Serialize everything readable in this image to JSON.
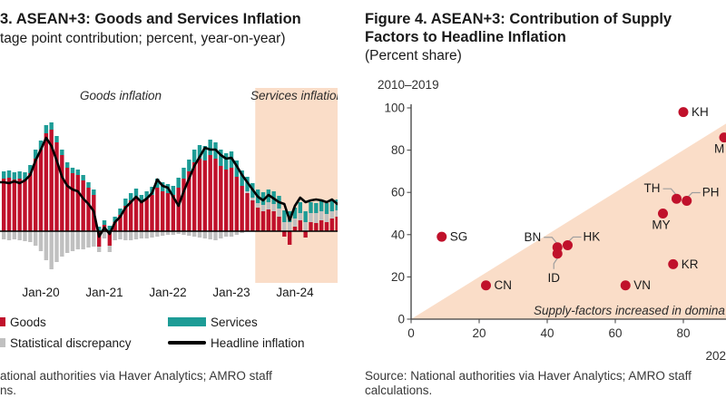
{
  "figure": {
    "left": {
      "title": "3. ASEAN+3: Goods and Services Inflation",
      "subtitle": "tage point contribution; percent, year-on-year)",
      "region_label_goods": "Goods inflation",
      "region_label_services": "Services inflation",
      "source": [
        "ational authorities via Haver Analytics; AMRO staff",
        "ns."
      ],
      "legend": [
        {
          "label": "Goods",
          "color": "#C0112B",
          "swatch": "square-cut"
        },
        {
          "label": "Services",
          "color": "#1D9C96",
          "swatch": "bar"
        },
        {
          "label": "Statistical discrepancy",
          "color": "#C0C0C0",
          "swatch": "square-cut"
        },
        {
          "label": "Headline inflation",
          "color": "#000000",
          "swatch": "line"
        }
      ]
    },
    "right": {
      "title_line1": "Figure 4. ASEAN+3: Contribution of Supply",
      "title_line2": "Factors to Headline Inflation",
      "subtitle": "(Percent share)",
      "source": [
        "Source: National authorities via Haver Analytics; AMRO staff",
        "calculations."
      ]
    }
  },
  "chart_data": [
    {
      "type": "bar",
      "title": "3. ASEAN+3: Goods and Services Inflation",
      "ylabel": "percentage point contribution; percent, year-on-year",
      "grid": false,
      "x_tick_labels": [
        "Jan-20",
        "Jan-21",
        "Jan-22",
        "Jan-23",
        "Jan-24"
      ],
      "x_tick_indices": [
        7,
        19,
        31,
        43,
        55
      ],
      "months": [
        "Jun-19",
        "Jul-19",
        "Aug-19",
        "Sep-19",
        "Oct-19",
        "Nov-19",
        "Dec-19",
        "Jan-20",
        "Feb-20",
        "Mar-20",
        "Apr-20",
        "May-20",
        "Jun-20",
        "Jul-20",
        "Aug-20",
        "Sep-20",
        "Oct-20",
        "Nov-20",
        "Dec-20",
        "Jan-21",
        "Feb-21",
        "Mar-21",
        "Apr-21",
        "May-21",
        "Jun-21",
        "Jul-21",
        "Aug-21",
        "Sep-21",
        "Oct-21",
        "Nov-21",
        "Dec-21",
        "Jan-22",
        "Feb-22",
        "Mar-22",
        "Apr-22",
        "May-22",
        "Jun-22",
        "Jul-22",
        "Aug-22",
        "Sep-22",
        "Oct-22",
        "Nov-22",
        "Dec-22",
        "Jan-23",
        "Feb-23",
        "Mar-23",
        "Apr-23",
        "May-23",
        "Jun-23",
        "Jul-23",
        "Aug-23",
        "Sep-23",
        "Oct-23",
        "Nov-23",
        "Dec-23",
        "Jan-24",
        "Feb-24",
        "Mar-24",
        "Apr-24",
        "May-24",
        "Jun-24",
        "Jul-24",
        "Aug-24",
        "Sep-24"
      ],
      "series": [
        {
          "name": "Goods",
          "color": "#C0112B",
          "values": [
            2.9,
            2.95,
            2.85,
            2.9,
            2.85,
            3.2,
            4.0,
            4.5,
            5.4,
            5.6,
            4.9,
            4.2,
            3.5,
            3.2,
            3.1,
            2.8,
            2.4,
            2.0,
            -0.85,
            0.35,
            -0.8,
            0.5,
            0.9,
            1.4,
            1.7,
            1.9,
            1.6,
            1.8,
            2.0,
            2.4,
            2.2,
            2.1,
            2.0,
            2.4,
            2.9,
            3.3,
            3.8,
            4.0,
            3.9,
            4.2,
            4.0,
            3.6,
            3.4,
            3.5,
            3.0,
            2.5,
            2.1,
            1.7,
            1.3,
            1.1,
            1.2,
            1.1,
            0.8,
            -0.3,
            -0.75,
            0.25,
            0.6,
            -0.35,
            0.5,
            0.45,
            0.6,
            0.5,
            0.7,
            0.8
          ]
        },
        {
          "name": "Services",
          "color": "#1D9C96",
          "values": [
            0.4,
            0.4,
            0.4,
            0.4,
            0.4,
            0.45,
            0.5,
            0.5,
            0.45,
            0.4,
            0.35,
            0.3,
            0.3,
            0.3,
            0.3,
            0.3,
            0.3,
            0.3,
            0.25,
            0.25,
            0.3,
            0.3,
            0.35,
            0.4,
            0.4,
            0.45,
            0.4,
            0.4,
            0.45,
            0.5,
            0.5,
            0.5,
            0.5,
            0.55,
            0.6,
            0.65,
            0.7,
            0.75,
            0.8,
            0.85,
            0.9,
            0.9,
            0.9,
            0.9,
            0.9,
            0.85,
            0.8,
            0.8,
            0.75,
            0.7,
            0.7,
            0.7,
            0.7,
            0.65,
            0.6,
            0.6,
            0.6,
            0.6,
            0.6,
            0.55,
            0.6,
            0.6,
            0.65,
            0.6
          ]
        },
        {
          "name": "Statistical discrepancy",
          "color": "#C0C0C0",
          "values": [
            -0.45,
            -0.5,
            -0.45,
            -0.5,
            -0.55,
            -0.6,
            -0.8,
            -1.1,
            -1.6,
            -2.1,
            -1.7,
            -1.4,
            -1.2,
            -1.1,
            -1.0,
            -1.0,
            -0.9,
            -0.85,
            -0.3,
            -0.4,
            -0.35,
            -0.5,
            -0.45,
            -0.5,
            -0.5,
            -0.45,
            -0.4,
            -0.4,
            -0.35,
            -0.3,
            -0.25,
            -0.2,
            -0.2,
            -0.15,
            -0.2,
            -0.25,
            -0.3,
            -0.35,
            -0.4,
            -0.45,
            -0.5,
            -0.4,
            -0.3,
            -0.3,
            -0.2,
            -0.1,
            0.1,
            0.15,
            0.25,
            0.35,
            0.4,
            0.4,
            0.45,
            0.5,
            0.5,
            0.45,
            0.4,
            0.5,
            0.5,
            0.55,
            0.5,
            0.45,
            0.4,
            0.35
          ]
        },
        {
          "name": "Headline inflation",
          "type": "line",
          "color": "#000000",
          "values": [
            2.7,
            2.65,
            2.75,
            2.65,
            2.8,
            3.1,
            3.9,
            4.5,
            5.15,
            4.7,
            3.9,
            3.0,
            2.5,
            2.3,
            2.2,
            1.8,
            1.5,
            1.1,
            -0.3,
            0.2,
            -0.15,
            0.5,
            0.8,
            1.3,
            1.6,
            1.9,
            1.6,
            1.8,
            2.1,
            2.85,
            2.5,
            2.4,
            1.9,
            1.4,
            2.2,
            2.9,
            3.6,
            4.1,
            4.6,
            4.5,
            4.5,
            4.2,
            4.0,
            4.05,
            3.6,
            3.1,
            2.7,
            2.3,
            1.9,
            1.7,
            2.0,
            1.8,
            1.6,
            1.5,
            0.6,
            1.4,
            1.85,
            1.6,
            1.7,
            1.75,
            1.7,
            1.6,
            1.75,
            1.5
          ]
        }
      ],
      "highlight_band": {
        "from_index": 48,
        "label": "Services inflation",
        "color": "#FADDC8"
      },
      "region_label": "Goods inflation",
      "ylim": [
        -3.5,
        8
      ]
    },
    {
      "type": "scatter",
      "title": "Figure 4. ASEAN+3: Contribution of Supply Factors to Headline Inflation",
      "subtitle": "(Percent share)",
      "ylabel": "2010–2019",
      "xlabel_partial": "202",
      "x_ticks": [
        0,
        20,
        40,
        60,
        80
      ],
      "y_ticks": [
        0,
        20,
        40,
        60,
        80,
        100
      ],
      "xlim": [
        0,
        92.5
      ],
      "ylim": [
        0,
        100
      ],
      "point_color": "#C0112B",
      "shade_color": "#FADDC8",
      "shade_region": "below 45-degree line from origin",
      "annotation": "Supply-factors increased in domina",
      "points": [
        {
          "label": "SG",
          "x": 9,
          "y": 39,
          "pos": "right"
        },
        {
          "label": "CN",
          "x": 22,
          "y": 16,
          "pos": "right"
        },
        {
          "label": "BN",
          "x": 43,
          "y": 34,
          "pos": "conn-upleft"
        },
        {
          "label": "HK",
          "x": 46,
          "y": 35,
          "pos": "conn-upright"
        },
        {
          "label": "ID",
          "x": 43,
          "y": 31,
          "pos": "conn-below"
        },
        {
          "label": "VN",
          "x": 63,
          "y": 16,
          "pos": "right"
        },
        {
          "label": "KR",
          "x": 77,
          "y": 26,
          "pos": "right"
        },
        {
          "label": "MY",
          "x": 74,
          "y": 50,
          "pos": "below"
        },
        {
          "label": "TH",
          "x": 78,
          "y": 57,
          "pos": "conn-upleft"
        },
        {
          "label": "PH",
          "x": 81,
          "y": 56,
          "pos": "conn-upright"
        },
        {
          "label": "KH",
          "x": 80,
          "y": 98,
          "pos": "right"
        },
        {
          "label": "M",
          "x": 92,
          "y": 86,
          "pos": "below-left"
        }
      ]
    }
  ]
}
